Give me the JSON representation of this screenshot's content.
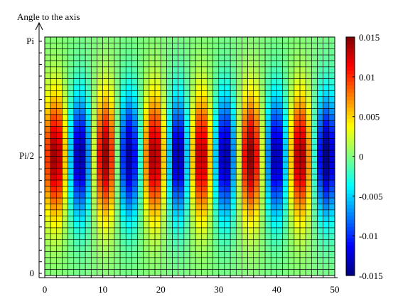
{
  "chart_data": {
    "type": "heatmap",
    "title": "",
    "xlabel": "",
    "ylabel": "Angle to the axis",
    "x_ticks": [
      "0",
      "10",
      "20",
      "30",
      "40",
      "50"
    ],
    "y_ticks": [
      "0",
      "Pi/2",
      "Pi"
    ],
    "xlim": [
      0,
      50
    ],
    "ylim": [
      0,
      3.1416
    ],
    "colormap": "jet",
    "clim": [
      -0.015,
      0.015
    ],
    "colorbar_ticks": [
      "0.015",
      "0.01",
      "0.005",
      "0",
      "-0.005",
      "-0.01",
      "-0.015"
    ],
    "colorbar_values": [
      0.015,
      0.01,
      0.005,
      0,
      -0.005,
      -0.01,
      -0.015
    ],
    "grid": true,
    "grid_color": "#000000",
    "columns": 50,
    "rows": 40,
    "field": {
      "description_of_pattern": "alternating positive/negative bands along x, peaked around y = Pi/2",
      "amplitude": 0.015,
      "band_centers_positive": [
        2,
        10.5,
        19,
        27,
        35.5,
        44
      ],
      "band_centers_negative": [
        6,
        14.5,
        23,
        31,
        40,
        48.5
      ],
      "band_sigma_x": 1.6,
      "y_center": 1.5708,
      "y_sigma": 0.55
    }
  }
}
